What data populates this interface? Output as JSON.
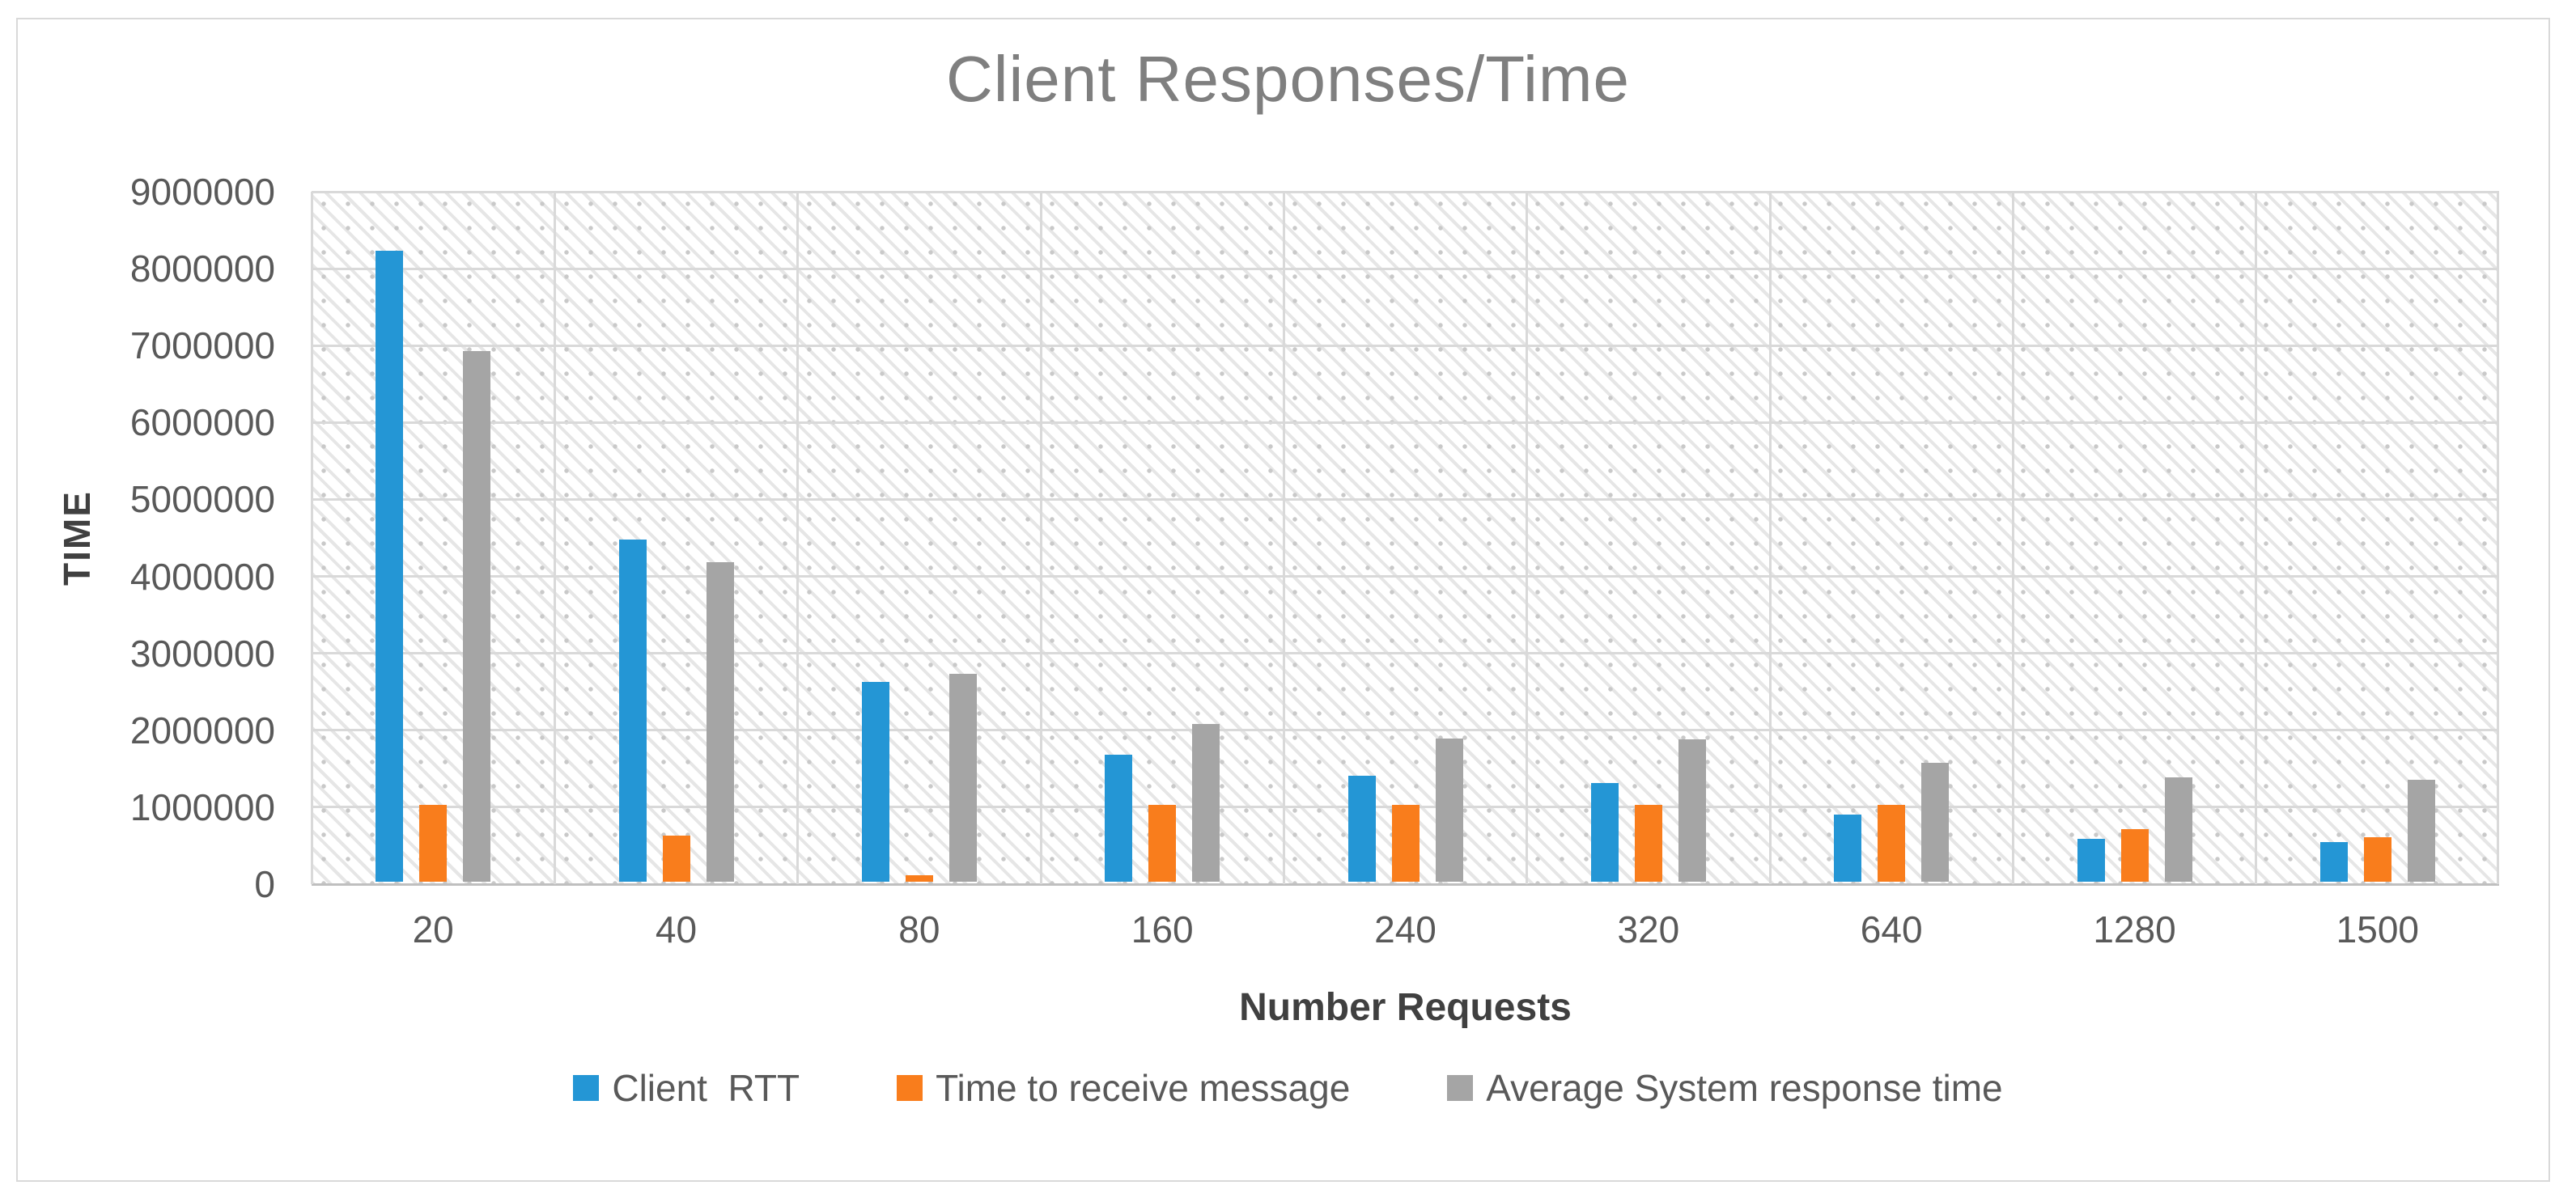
{
  "figure": {
    "title": "Client Responses/Time"
  },
  "chart_data": {
    "type": "bar",
    "title": "Client Responses/Time",
    "xlabel": "Number Requests",
    "ylabel": "TIME",
    "ylim": [
      0,
      9000000
    ],
    "y_tick_step": 1000000,
    "y_tick_labels": [
      "0",
      "1000000",
      "2000000",
      "3000000",
      "4000000",
      "5000000",
      "6000000",
      "7000000",
      "8000000",
      "9000000"
    ],
    "grid": true,
    "plot_background": "diagonal-hatch-with-dots",
    "legend_position": "bottom-center",
    "categories": [
      "20",
      "40",
      "80",
      "160",
      "240",
      "320",
      "640",
      "1280",
      "1500"
    ],
    "series": [
      {
        "name": "Client  RTT",
        "color": "#2496D5",
        "values": [
          8200000,
          4450000,
          2600000,
          1650000,
          1380000,
          1280000,
          870000,
          560000,
          520000
        ]
      },
      {
        "name": "Time to receive message",
        "color": "#F97D1C",
        "values": [
          1000000,
          600000,
          80000,
          1000000,
          1000000,
          1000000,
          1000000,
          680000,
          580000
        ]
      },
      {
        "name": "Average System response time",
        "color": "#A5A5A5",
        "values": [
          6900000,
          4150000,
          2700000,
          2050000,
          1860000,
          1850000,
          1550000,
          1360000,
          1320000
        ]
      }
    ]
  },
  "colors": {
    "title_text": "#7F7F7F",
    "tick_text": "#595959",
    "axis_title_text": "#404040",
    "legend_text": "#595959",
    "gridline": "#D9D9D9",
    "axis_line": "#BFBFBF",
    "figure_border": "#D9D9D9",
    "background": "#FFFFFF"
  }
}
